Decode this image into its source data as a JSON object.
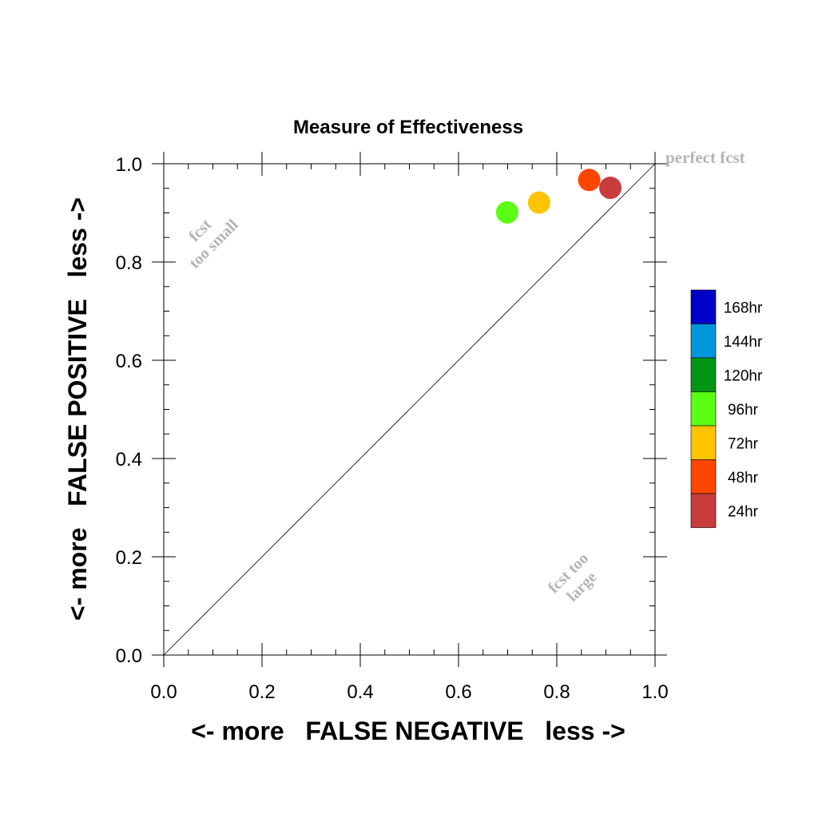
{
  "chart_data": {
    "type": "scatter",
    "title": "Measure of Effectiveness",
    "xlabel": "<- more   FALSE NEGATIVE   less ->",
    "ylabel": "<- more   FALSE POSITIVE   less ->",
    "xlim": [
      0,
      1
    ],
    "ylim": [
      0,
      1
    ],
    "xticks": [
      "0.0",
      "0.2",
      "0.4",
      "0.6",
      "0.8",
      "1.0"
    ],
    "yticks": [
      "0.0",
      "0.2",
      "0.4",
      "0.6",
      "0.8",
      "1.0"
    ],
    "grid": false,
    "diagonal_line": true,
    "annotations": {
      "perfect": "perfect fcst",
      "too_small_1": "fcst",
      "too_small_2": "too small",
      "too_large_1": "fcst too",
      "too_large_2": "large"
    },
    "legend": {
      "placement": "right",
      "entries": [
        {
          "label": "168hr",
          "color": "#0000c8"
        },
        {
          "label": "144hr",
          "color": "#0096dc"
        },
        {
          "label": "120hr",
          "color": "#009614"
        },
        {
          "label": "96hr",
          "color": "#5aff14"
        },
        {
          "label": "72hr",
          "color": "#ffc300"
        },
        {
          "label": "48hr",
          "color": "#ff4600"
        },
        {
          "label": "24hr",
          "color": "#c83c3c"
        }
      ]
    },
    "series": [
      {
        "name": "24hr",
        "color": "#c83c3c",
        "x": 0.909,
        "y": 0.951
      },
      {
        "name": "48hr",
        "color": "#ff4600",
        "x": 0.866,
        "y": 0.967
      },
      {
        "name": "72hr",
        "color": "#ffc300",
        "x": 0.764,
        "y": 0.921
      },
      {
        "name": "96hr",
        "color": "#5aff14",
        "x": 0.699,
        "y": 0.901
      }
    ]
  }
}
